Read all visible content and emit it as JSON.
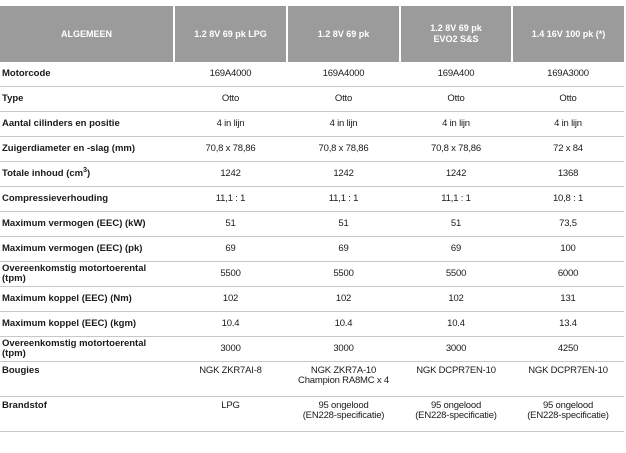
{
  "table": {
    "headers": [
      [
        "ALGEMEEN"
      ],
      [
        "1.2 8V 69 pk LPG"
      ],
      [
        "1.2 8V 69 pk"
      ],
      [
        "1.2 8V 69 pk",
        "EVO2 S&S"
      ],
      [
        "1.4 16V 100 pk (*)"
      ]
    ],
    "rows": [
      {
        "label": "Motorcode",
        "cells": [
          [
            "169A4000"
          ],
          [
            "169A4000"
          ],
          [
            "169A400"
          ],
          [
            "169A3000"
          ]
        ]
      },
      {
        "label": "Type",
        "cells": [
          [
            "Otto"
          ],
          [
            "Otto"
          ],
          [
            "Otto"
          ],
          [
            "Otto"
          ]
        ]
      },
      {
        "label": "Aantal cilinders en positie",
        "cells": [
          [
            "4 in lijn"
          ],
          [
            "4 in lijn"
          ],
          [
            "4 in lijn"
          ],
          [
            "4 in lijn"
          ]
        ]
      },
      {
        "label": "Zuigerdiameter en -slag (mm)",
        "cells": [
          [
            "70,8 x 78,86"
          ],
          [
            "70,8 x 78,86"
          ],
          [
            "70,8 x 78,86"
          ],
          [
            "72 x 84"
          ]
        ]
      },
      {
        "label": "Totale inhoud (cm",
        "label_sup": "3",
        "label_suffix": ")",
        "cells": [
          [
            "1242"
          ],
          [
            "1242"
          ],
          [
            "1242"
          ],
          [
            "1368"
          ]
        ]
      },
      {
        "label": "Compressieverhouding",
        "cells": [
          [
            "11,1 : 1"
          ],
          [
            "11,1 : 1"
          ],
          [
            "11,1 : 1"
          ],
          [
            "10,8 : 1"
          ]
        ]
      },
      {
        "label": "Maximum vermogen (EEC) (kW)",
        "cells": [
          [
            "51"
          ],
          [
            "51"
          ],
          [
            "51"
          ],
          [
            "73,5"
          ]
        ]
      },
      {
        "label": "Maximum vermogen (EEC) (pk)",
        "cells": [
          [
            "69"
          ],
          [
            "69"
          ],
          [
            "69"
          ],
          [
            "100"
          ]
        ]
      },
      {
        "label": "Overeenkomstig motortoerental (tpm)",
        "cells": [
          [
            "5500"
          ],
          [
            "5500"
          ],
          [
            "5500"
          ],
          [
            "6000"
          ]
        ]
      },
      {
        "label": "Maximum koppel (EEC) (Nm)",
        "cells": [
          [
            "102"
          ],
          [
            "102"
          ],
          [
            "102"
          ],
          [
            "131"
          ]
        ]
      },
      {
        "label": "Maximum koppel (EEC) (kgm)",
        "cells": [
          [
            "10.4"
          ],
          [
            "10.4"
          ],
          [
            "10.4"
          ],
          [
            "13.4"
          ]
        ]
      },
      {
        "label": "Overeenkomstig motortoerental (tpm)",
        "cells": [
          [
            "3000"
          ],
          [
            "3000"
          ],
          [
            "3000"
          ],
          [
            "4250"
          ]
        ]
      },
      {
        "label": "Bougies",
        "tall": true,
        "cells": [
          [
            "NGK ZKR7AI-8"
          ],
          [
            "NGK ZKR7A-10",
            "Champion RA8MC x 4"
          ],
          [
            "NGK DCPR7EN-10"
          ],
          [
            "NGK DCPR7EN-10"
          ]
        ]
      },
      {
        "label": "Brandstof",
        "tall": true,
        "cells": [
          [
            "LPG"
          ],
          [
            "95 ongelood",
            "(EN228-specificatie)"
          ],
          [
            "95 ongelood",
            "(EN228-specificatie)"
          ],
          [
            "95 ongelood",
            "(EN228-specificatie)"
          ]
        ]
      }
    ]
  }
}
